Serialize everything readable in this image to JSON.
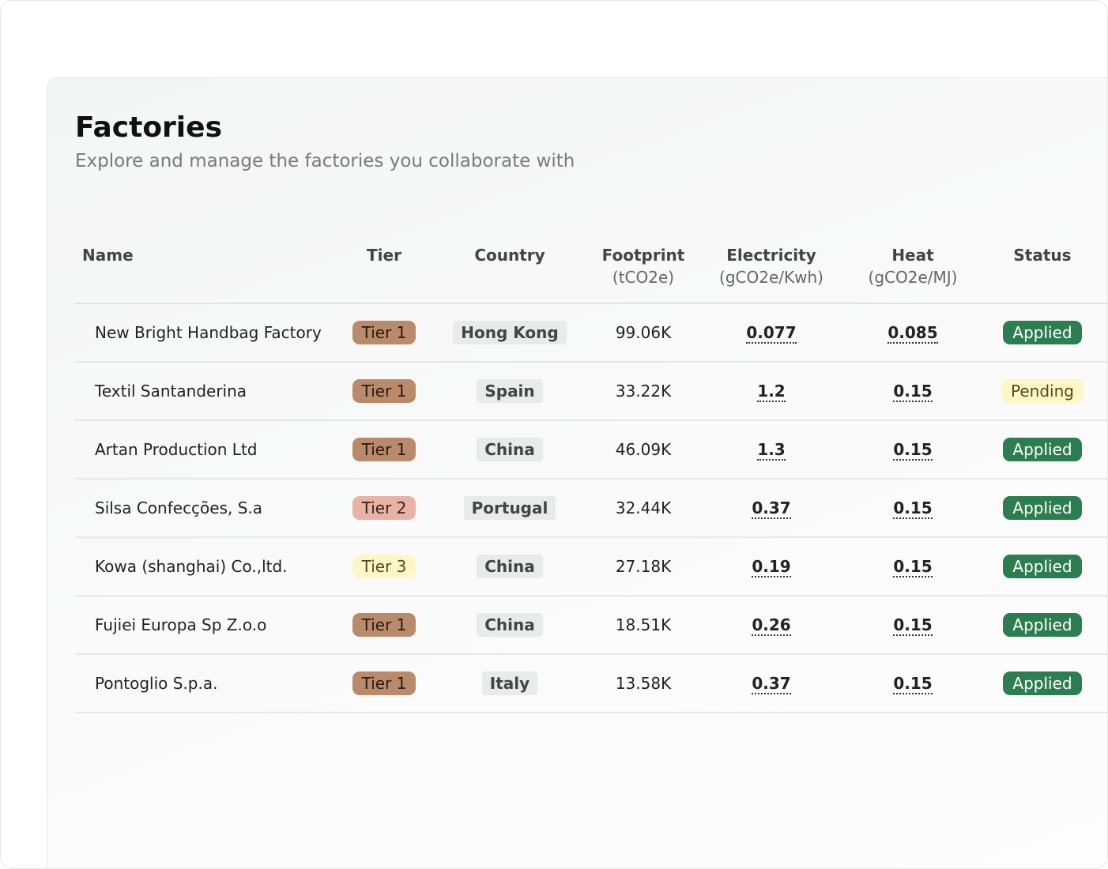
{
  "header": {
    "title": "Factories",
    "subtitle": "Explore and manage the factories you collaborate with"
  },
  "table": {
    "columns": [
      {
        "name": "Name"
      },
      {
        "name": "Tier"
      },
      {
        "name": "Country"
      },
      {
        "name": "Footprint",
        "unit": "(tCO2e)"
      },
      {
        "name": "Electricity",
        "unit": "(gCO2e/Kwh)"
      },
      {
        "name": "Heat",
        "unit": "(gCO2e/MJ)"
      },
      {
        "name": "Status"
      }
    ],
    "rows": [
      [
        "New Bright Handbag Factory",
        "Tier 1",
        "Hong Kong",
        "99.06K",
        "0.077",
        "0.085",
        "Applied"
      ],
      [
        "Textil Santanderina",
        "Tier 1",
        "Spain",
        "33.22K",
        "1.2",
        "0.15",
        "Pending"
      ],
      [
        "Artan Production Ltd",
        "Tier 1",
        "China",
        "46.09K",
        "1.3",
        "0.15",
        "Applied"
      ],
      [
        "Silsa Confecções, S.a",
        "Tier 2",
        "Portugal",
        "32.44K",
        "0.37",
        "0.15",
        "Applied"
      ],
      [
        "Kowa (shanghai) Co.,ltd.",
        "Tier 3",
        "China",
        "27.18K",
        "0.19",
        "0.15",
        "Applied"
      ],
      [
        "Fujiei Europa Sp Z.o.o",
        "Tier 1",
        "China",
        "18.51K",
        "0.26",
        "0.15",
        "Applied"
      ],
      [
        "Pontoglio S.p.a.",
        "Tier 1",
        "Italy",
        "13.58K",
        "0.37",
        "0.15",
        "Applied"
      ]
    ]
  }
}
